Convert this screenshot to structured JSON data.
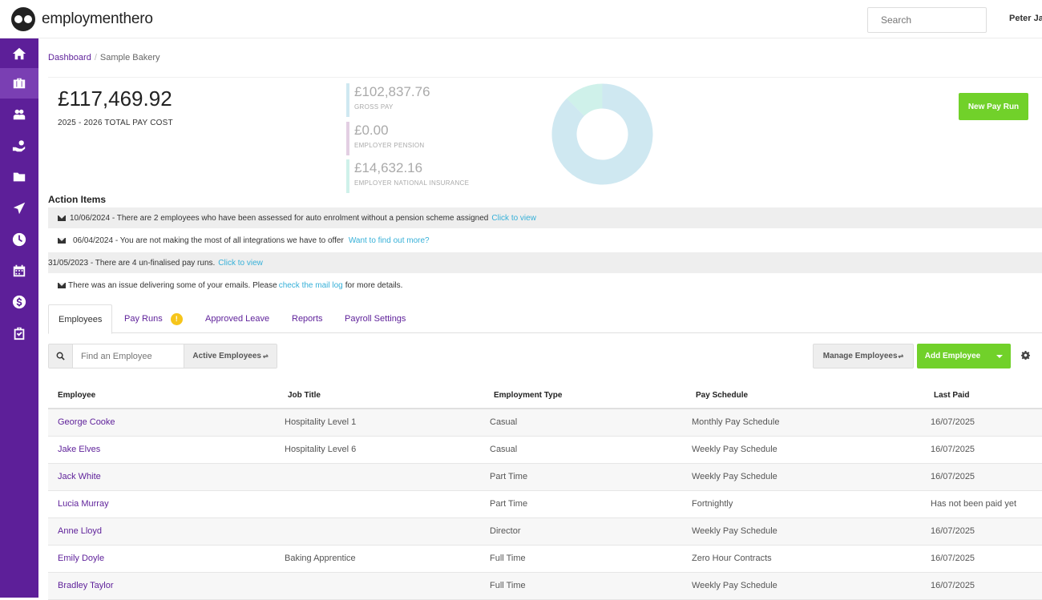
{
  "brand": {
    "name": "employmenthero"
  },
  "topbar": {
    "search_placeholder": "Search",
    "user_name": "Peter Ja"
  },
  "sidebar": {
    "items": [
      {
        "icon": "home-icon"
      },
      {
        "icon": "briefcase-icon"
      },
      {
        "icon": "people-icon"
      },
      {
        "icon": "hand-coins-icon"
      },
      {
        "icon": "folder-icon"
      },
      {
        "icon": "plane-icon"
      },
      {
        "icon": "clock-icon"
      },
      {
        "icon": "calendar-icon"
      },
      {
        "icon": "money-icon"
      },
      {
        "icon": "clipboard-check-icon"
      }
    ]
  },
  "breadcrumb": {
    "link": "Dashboard",
    "separator": "/",
    "current": "Sample Bakery"
  },
  "summary": {
    "total_amount": "£117,469.92",
    "total_label": "2025 - 2026 TOTAL PAY COST",
    "gross_pay": {
      "amount": "£102,837.76",
      "label": "GROSS PAY"
    },
    "employer_pension": {
      "amount": "£0.00",
      "label": "EMPLOYER PENSION"
    },
    "employer_ni": {
      "amount": "£14,632.16",
      "label": "EMPLOYER NATIONAL INSURANCE"
    },
    "colors": {
      "gross": "#cfe8f1",
      "pension": "#e3cfe3",
      "ni": "#cff1ea"
    },
    "new_pay_run": "New Pay Run"
  },
  "chart_data": {
    "type": "pie",
    "categories": [
      "Gross Pay",
      "Employer Pension",
      "Employer National Insurance"
    ],
    "values": [
      102837.76,
      0.0,
      14632.16
    ],
    "title": ""
  },
  "action_items": {
    "title": "Action Items",
    "items": [
      {
        "text": "10/06/2024 - There are 2 employees who have been assessed for auto enrolment without a pension scheme assigned",
        "link": "Click to view"
      },
      {
        "text": "06/04/2024 - You are not making the most of all integrations we have to offer",
        "link": "Want to find out more?"
      },
      {
        "text": "31/05/2023 - There are 4 un-finalised pay runs.",
        "link": "Click to view"
      },
      {
        "text": "There was an issue delivering some of your emails. Please",
        "link": "check the mail log",
        "suffix": "for more details."
      }
    ]
  },
  "tabs": [
    {
      "label": "Employees"
    },
    {
      "label": "Pay Runs",
      "badge": "!"
    },
    {
      "label": "Approved Leave"
    },
    {
      "label": "Reports"
    },
    {
      "label": "Payroll Settings"
    }
  ],
  "toolbar": {
    "find_placeholder": "Find an Employee",
    "active_filter": "Active Employees",
    "manage": "Manage Employees",
    "add": "Add Employee"
  },
  "table": {
    "columns": [
      "Employee",
      "Job Title",
      "Employment Type",
      "Pay Schedule",
      "Last Paid"
    ],
    "rows": [
      {
        "employee": "George Cooke",
        "job_title": "Hospitality Level 1",
        "type": "Casual",
        "schedule": "Monthly Pay Schedule",
        "last_paid": "16/07/2025"
      },
      {
        "employee": "Jake Elves",
        "job_title": "Hospitality Level 6",
        "type": "Casual",
        "schedule": "Weekly Pay Schedule",
        "last_paid": "16/07/2025"
      },
      {
        "employee": "Jack White",
        "job_title": "",
        "type": "Part Time",
        "schedule": "Weekly Pay Schedule",
        "last_paid": "16/07/2025"
      },
      {
        "employee": "Lucia Murray",
        "job_title": "",
        "type": "Part Time",
        "schedule": "Fortnightly",
        "last_paid": "Has not been paid yet"
      },
      {
        "employee": "Anne Lloyd",
        "job_title": "",
        "type": "Director",
        "schedule": "Weekly Pay Schedule",
        "last_paid": "16/07/2025"
      },
      {
        "employee": "Emily Doyle",
        "job_title": "Baking Apprentice",
        "type": "Full Time",
        "schedule": "Zero Hour Contracts",
        "last_paid": "16/07/2025"
      },
      {
        "employee": "Bradley Taylor",
        "job_title": "",
        "type": "Full Time",
        "schedule": "Weekly Pay Schedule",
        "last_paid": "16/07/2025"
      }
    ]
  },
  "accent": "#5d1f99",
  "button_green": "#71d12a"
}
